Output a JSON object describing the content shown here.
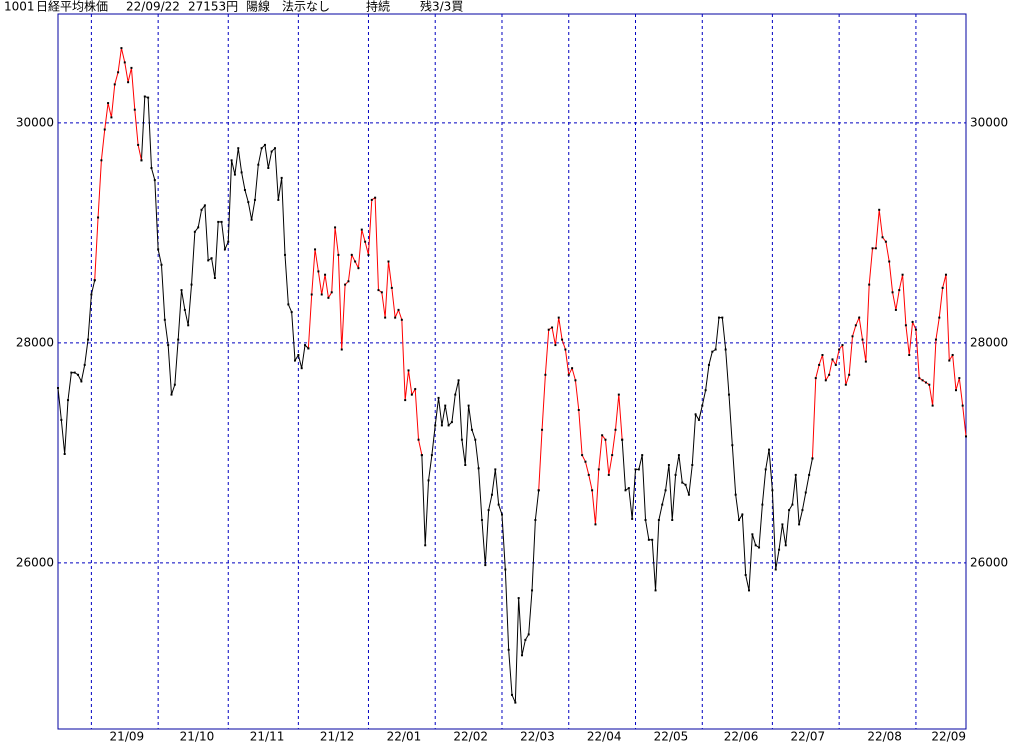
{
  "header": {
    "code": "1001",
    "name": "日経平均株価",
    "date": "22/09/22",
    "price": "27153円",
    "candle": "陽線",
    "method": "法示なし",
    "status": "持続",
    "position": "残3/3買"
  },
  "chart_data": {
    "type": "line",
    "xlim": [
      0,
      272
    ],
    "xticks": [
      {
        "value": 10,
        "label": "21/09"
      },
      {
        "value": 30,
        "label": "21/10"
      },
      {
        "value": 51,
        "label": "21/11"
      },
      {
        "value": 72,
        "label": "21/12"
      },
      {
        "value": 93,
        "label": "22/01"
      },
      {
        "value": 113,
        "label": "22/02"
      },
      {
        "value": 133,
        "label": "22/03"
      },
      {
        "value": 153,
        "label": "22/04"
      },
      {
        "value": 173,
        "label": "22/05"
      },
      {
        "value": 193,
        "label": "22/06"
      },
      {
        "value": 214,
        "label": "22/07"
      },
      {
        "value": 234,
        "label": "22/08"
      },
      {
        "value": 257,
        "label": "22/09"
      }
    ],
    "ylim": [
      24490,
      30990
    ],
    "yticks": [
      26000,
      28000,
      30000
    ],
    "grid": true,
    "series": [
      {
        "color": "#000000",
        "values": [
          27590,
          27300,
          26990,
          27480,
          27730,
          27730,
          27710,
          27650,
          27800,
          28030,
          28440,
          28570,
          null,
          null,
          null,
          null,
          null,
          null,
          null,
          null,
          null,
          null,
          null,
          null,
          null,
          29660,
          30240,
          30230,
          29590,
          29480,
          28850,
          28710,
          28210,
          27980,
          27530,
          27620,
          28030,
          28480,
          28300,
          28160,
          28530,
          29010,
          29050,
          29210,
          29250,
          28750,
          28770,
          28590,
          29100,
          29100,
          28850,
          28920,
          29660,
          29530,
          29770,
          29550,
          29390,
          29280,
          29120,
          29300,
          29620,
          29770,
          29800,
          29590,
          29740,
          29770,
          29300,
          29500,
          28800,
          28350,
          28280,
          27840,
          27890,
          27770,
          27980,
          27950,
          null,
          null,
          null,
          null,
          null,
          null,
          null,
          null,
          null,
          null,
          null,
          null,
          null,
          null,
          null,
          null,
          null,
          null,
          null,
          null,
          null,
          null,
          null,
          null,
          null,
          null,
          null,
          null,
          null,
          null,
          null,
          null,
          null,
          26980,
          26160,
          26750,
          26980,
          27250,
          27500,
          27250,
          27430,
          27250,
          27280,
          27530,
          27660,
          27120,
          26890,
          27430,
          27210,
          27120,
          26860,
          26390,
          25980,
          26480,
          26620,
          26850,
          26530,
          26440,
          25940,
          25210,
          24800,
          24730,
          25680,
          25160,
          25300,
          25350,
          25750,
          26390,
          26660,
          null,
          null,
          null,
          null,
          null,
          null,
          null,
          null,
          null,
          null,
          null,
          null,
          null,
          null,
          null,
          null,
          null,
          null,
          null,
          null,
          null,
          null,
          null,
          null,
          27120,
          26660,
          26680,
          26400,
          26850,
          26850,
          26980,
          26390,
          26210,
          26210,
          25750,
          26390,
          26530,
          26660,
          26890,
          26390,
          26800,
          26980,
          26730,
          26710,
          26620,
          26890,
          27350,
          27300,
          27430,
          27570,
          27800,
          27920,
          27940,
          28230,
          28230,
          27940,
          27530,
          27070,
          26620,
          26390,
          26440,
          25890,
          25750,
          26260,
          26160,
          26140,
          26530,
          26850,
          27030,
          26660,
          25940,
          26120,
          26350,
          26160,
          26480,
          26530,
          26800,
          26350,
          26480,
          26640,
          26800,
          26950,
          null,
          null,
          null,
          null,
          null,
          null,
          null,
          null,
          null,
          null,
          null,
          null,
          null,
          null,
          null,
          null,
          null,
          null,
          null,
          null,
          null,
          null,
          null,
          null,
          null,
          null,
          null,
          null,
          null,
          null,
          null,
          null,
          null,
          null,
          null,
          null,
          null,
          null,
          null,
          null,
          null,
          null,
          null,
          null,
          null,
          null
        ]
      },
      {
        "color": "#ff0000",
        "values": [
          null,
          null,
          null,
          null,
          null,
          null,
          null,
          null,
          null,
          null,
          null,
          28570,
          29140,
          29660,
          29940,
          30180,
          30050,
          30350,
          30460,
          30680,
          30550,
          30370,
          30500,
          30120,
          29800,
          29660,
          null,
          null,
          null,
          null,
          null,
          null,
          null,
          null,
          null,
          null,
          null,
          null,
          null,
          null,
          null,
          null,
          null,
          null,
          null,
          null,
          null,
          null,
          null,
          null,
          null,
          null,
          null,
          null,
          null,
          null,
          null,
          null,
          null,
          null,
          null,
          null,
          null,
          null,
          null,
          null,
          null,
          null,
          null,
          null,
          null,
          null,
          null,
          null,
          null,
          27950,
          28440,
          28850,
          28650,
          28440,
          28620,
          28410,
          28460,
          29050,
          28800,
          27940,
          28530,
          28560,
          28800,
          28740,
          28680,
          29030,
          28920,
          28800,
          29300,
          29320,
          28480,
          28460,
          28230,
          28740,
          28500,
          28230,
          28300,
          28210,
          27480,
          27750,
          27530,
          27580,
          27120,
          26980,
          null,
          null,
          null,
          null,
          null,
          null,
          null,
          null,
          null,
          null,
          null,
          null,
          null,
          null,
          null,
          null,
          null,
          null,
          null,
          null,
          null,
          null,
          null,
          null,
          null,
          null,
          null,
          null,
          null,
          null,
          null,
          null,
          null,
          null,
          26660,
          27210,
          27710,
          28120,
          28140,
          27980,
          28230,
          28030,
          27940,
          27710,
          27770,
          27660,
          27390,
          26980,
          26920,
          26800,
          26660,
          26350,
          26850,
          27160,
          27120,
          26800,
          26980,
          27210,
          27530,
          27120,
          null,
          null,
          null,
          null,
          null,
          null,
          null,
          null,
          null,
          null,
          null,
          null,
          null,
          null,
          null,
          null,
          null,
          null,
          null,
          null,
          null,
          null,
          null,
          null,
          null,
          null,
          null,
          null,
          null,
          null,
          null,
          null,
          null,
          null,
          null,
          null,
          null,
          null,
          null,
          null,
          null,
          null,
          null,
          null,
          null,
          null,
          null,
          null,
          null,
          null,
          null,
          null,
          null,
          null,
          null,
          null,
          26950,
          27680,
          27800,
          27890,
          27660,
          27710,
          27850,
          27800,
          27940,
          27980,
          27620,
          27710,
          28060,
          28160,
          28230,
          28030,
          27830,
          28530,
          28860,
          28860,
          29210,
          28960,
          28920,
          28740,
          28460,
          28300,
          28480,
          28620,
          28160,
          27890,
          28190,
          28120,
          27680,
          27660,
          27640,
          27620,
          27430,
          28030,
          28230,
          28500,
          28620,
          27840,
          27890,
          27570,
          27680,
          27430,
          27150
        ]
      }
    ]
  }
}
